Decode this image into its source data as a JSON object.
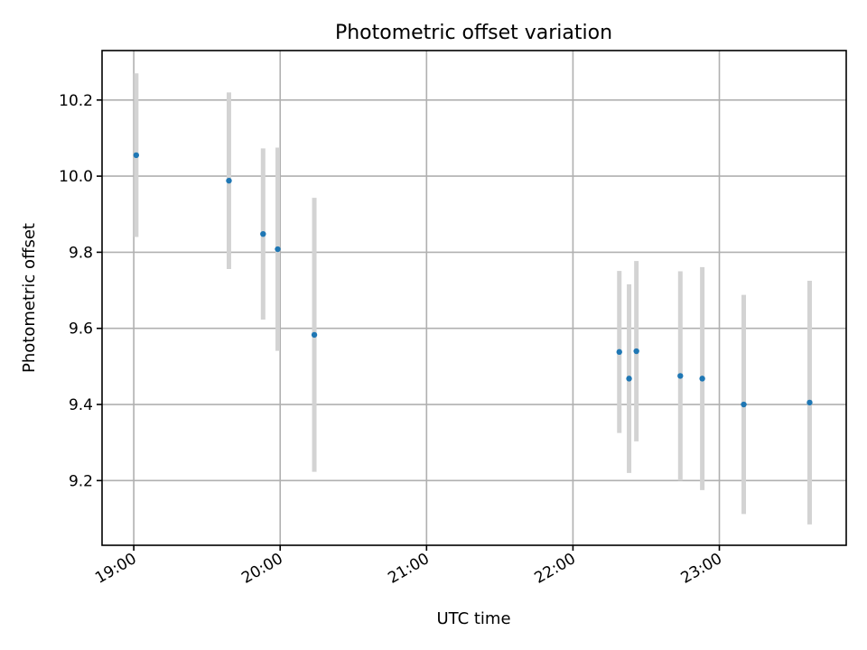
{
  "chart_data": {
    "type": "scatter",
    "title": "Photometric offset variation",
    "xlabel": "UTC time",
    "ylabel": "Photometric offset",
    "x_type": "time",
    "xlim": [
      "18:47",
      "23:52"
    ],
    "ylim": [
      9.03,
      10.33
    ],
    "x_ticks": [
      "19:00",
      "20:00",
      "21:00",
      "22:00",
      "23:00"
    ],
    "y_ticks": [
      "9.2",
      "9.4",
      "9.6",
      "9.8",
      "10.0",
      "10.2"
    ],
    "grid": true,
    "marker_color": "#1f77b4",
    "errorbar_color": "#d3d3d3",
    "points": [
      {
        "x": "19:01",
        "y": 10.055,
        "err": 0.215
      },
      {
        "x": "19:39",
        "y": 9.988,
        "err": 0.232
      },
      {
        "x": "19:53",
        "y": 9.848,
        "err": 0.225
      },
      {
        "x": "19:59",
        "y": 9.808,
        "err": 0.267
      },
      {
        "x": "20:14",
        "y": 9.583,
        "err": 0.36
      },
      {
        "x": "22:19",
        "y": 9.538,
        "err": 0.213
      },
      {
        "x": "22:23",
        "y": 9.468,
        "err": 0.248
      },
      {
        "x": "22:26",
        "y": 9.54,
        "err": 0.237
      },
      {
        "x": "22:44",
        "y": 9.475,
        "err": 0.275
      },
      {
        "x": "22:53",
        "y": 9.468,
        "err": 0.293
      },
      {
        "x": "23:10",
        "y": 9.4,
        "err": 0.288
      },
      {
        "x": "23:37",
        "y": 9.405,
        "err": 0.32
      }
    ]
  }
}
